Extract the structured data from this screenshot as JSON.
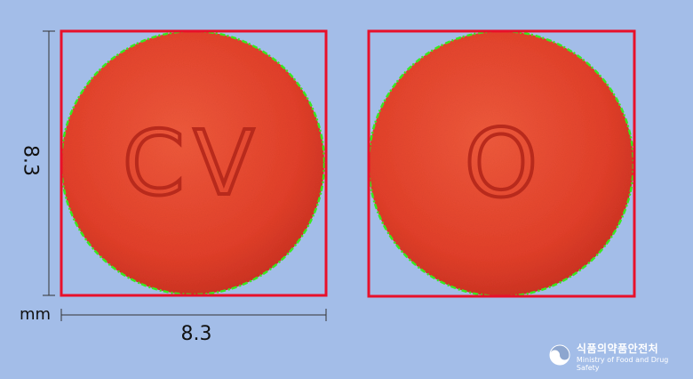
{
  "dimensions": {
    "height_label": "8.3",
    "width_label": "8.3",
    "unit": "mm"
  },
  "tablets": [
    {
      "side": "front",
      "imprint": "CV"
    },
    {
      "side": "back",
      "imprint": "O"
    }
  ],
  "colors": {
    "background": "#a3bde8",
    "tablet": "#e8402c",
    "bounding_box": "#e8102a",
    "contour": "#39e81f"
  },
  "watermark": {
    "korean": "식품의약품안전처",
    "english": "Ministry of Food and Drug Safety"
  }
}
